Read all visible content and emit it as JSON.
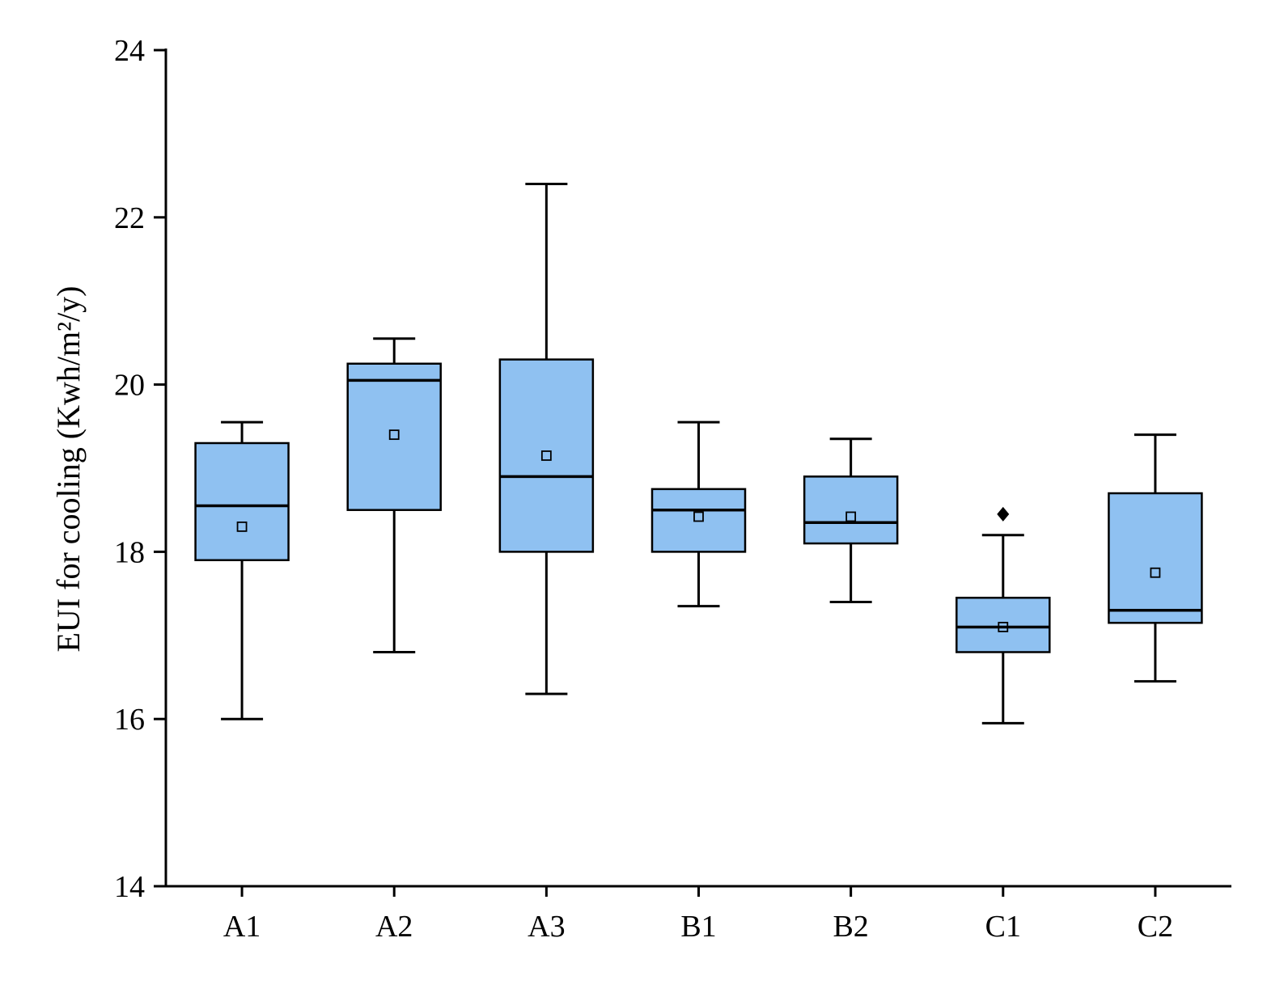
{
  "chart_data": {
    "type": "boxplot",
    "title": "",
    "xlabel": "",
    "ylabel": "EUI for cooling (Kwh/m²/y)",
    "ylim": [
      14,
      24
    ],
    "yticks": [
      14,
      16,
      18,
      20,
      22,
      24
    ],
    "categories": [
      "A1",
      "A2",
      "A3",
      "B1",
      "B2",
      "C1",
      "C2"
    ],
    "grid": "off",
    "legend": "none",
    "box_fill": "#8fc1f1",
    "box_stroke": "#000000",
    "series": [
      {
        "category": "A1",
        "whisker_low": 16.0,
        "q1": 17.9,
        "median": 18.55,
        "q3": 19.3,
        "whisker_high": 19.55,
        "mean": 18.3,
        "outliers": []
      },
      {
        "category": "A2",
        "whisker_low": 16.8,
        "q1": 18.5,
        "median": 20.05,
        "q3": 20.25,
        "whisker_high": 20.55,
        "mean": 19.4,
        "outliers": []
      },
      {
        "category": "A3",
        "whisker_low": 16.3,
        "q1": 18.0,
        "median": 18.9,
        "q3": 20.3,
        "whisker_high": 22.4,
        "mean": 19.15,
        "outliers": []
      },
      {
        "category": "B1",
        "whisker_low": 17.35,
        "q1": 18.0,
        "median": 18.5,
        "q3": 18.75,
        "whisker_high": 19.55,
        "mean": 18.42,
        "outliers": []
      },
      {
        "category": "B2",
        "whisker_low": 17.4,
        "q1": 18.1,
        "median": 18.35,
        "q3": 18.9,
        "whisker_high": 19.35,
        "mean": 18.42,
        "outliers": []
      },
      {
        "category": "C1",
        "whisker_low": 15.95,
        "q1": 16.8,
        "median": 17.1,
        "q3": 17.45,
        "whisker_high": 18.2,
        "mean": 17.1,
        "outliers": [
          18.45
        ]
      },
      {
        "category": "C2",
        "whisker_low": 16.45,
        "q1": 17.15,
        "median": 17.3,
        "q3": 18.7,
        "whisker_high": 19.4,
        "mean": 17.75,
        "outliers": []
      }
    ]
  }
}
